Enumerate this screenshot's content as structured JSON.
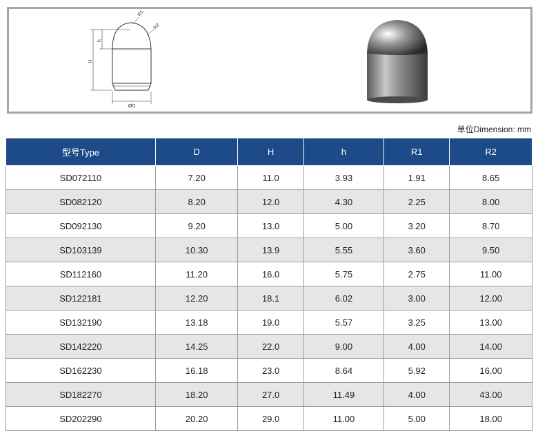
{
  "diagram": {
    "labels": {
      "r1": "R1",
      "r2": "R2",
      "big_h": "H",
      "small_h": "h",
      "d": "ØD"
    }
  },
  "unit_note": "单位Dimension: mm",
  "table": {
    "header": [
      "型号Type",
      "D",
      "H",
      "h",
      "R1",
      "R2"
    ],
    "rows": [
      [
        "SD072110",
        "7.20",
        "11.0",
        "3.93",
        "1.91",
        "8.65"
      ],
      [
        "SD082120",
        "8.20",
        "12.0",
        "4.30",
        "2.25",
        "8.00"
      ],
      [
        "SD092130",
        "9.20",
        "13.0",
        "5.00",
        "3.20",
        "8.70"
      ],
      [
        "SD103139",
        "10.30",
        "13.9",
        "5.55",
        "3.60",
        "9.50"
      ],
      [
        "SD112160",
        "11.20",
        "16.0",
        "5.75",
        "2.75",
        "11.00"
      ],
      [
        "SD122181",
        "12.20",
        "18.1",
        "6.02",
        "3.00",
        "12.00"
      ],
      [
        "SD132190",
        "13.18",
        "19.0",
        "5.57",
        "3.25",
        "13.00"
      ],
      [
        "SD142220",
        "14.25",
        "22.0",
        "9.00",
        "4.00",
        "14.00"
      ],
      [
        "SD162230",
        "16.18",
        "23.0",
        "8.64",
        "5.92",
        "16.00"
      ],
      [
        "SD182270",
        "18.20",
        "27.0",
        "11.49",
        "4.00",
        "43.00"
      ],
      [
        "SD202290",
        "20.20",
        "29.0",
        "11.00",
        "5.00",
        "18.00"
      ]
    ]
  }
}
